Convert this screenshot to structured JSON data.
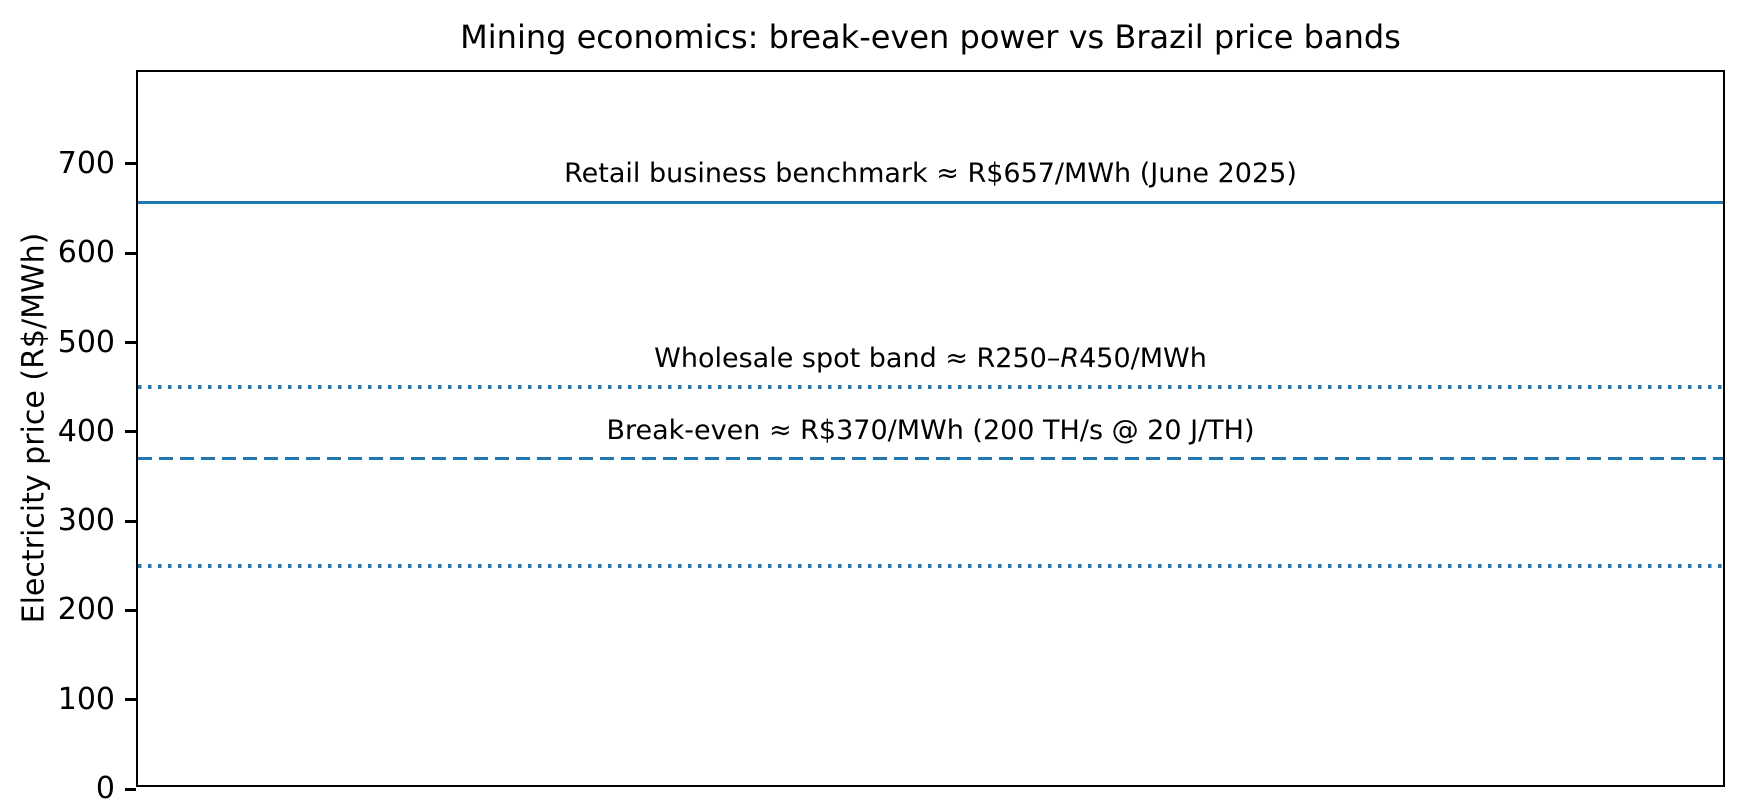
{
  "chart_data": {
    "type": "line",
    "subtype": "horizontal-reference-lines",
    "title": "Mining economics: break-even power vs Brazil price bands",
    "xlabel": "",
    "ylabel": "Electricity price (R$/MWh)",
    "ylim": [
      0,
      803
    ],
    "yticks": [
      0,
      100,
      200,
      300,
      400,
      500,
      600,
      700
    ],
    "xticks": [],
    "grid": false,
    "legend": "none",
    "accent_color": "#1f77b4",
    "lines": [
      {
        "name": "retail-benchmark-line",
        "value": 657,
        "style": "solid",
        "color": "#1f77b4",
        "label_parts": [
          {
            "text": "Retail business benchmark ≈ R$657/MWh (June 2025)",
            "italic": false
          }
        ]
      },
      {
        "name": "wholesale-band-upper-line",
        "value": 450,
        "style": "dotted",
        "color": "#1f77b4",
        "label_parts": [
          {
            "text": "Wholesale spot band ≈ R250–",
            "italic": false
          },
          {
            "text": "R",
            "italic": true
          },
          {
            "text": "450/MWh",
            "italic": false
          }
        ]
      },
      {
        "name": "break-even-line",
        "value": 370,
        "style": "dashed",
        "color": "#1f77b4",
        "label_parts": [
          {
            "text": "Break-even ≈ R$370/MWh (200 TH/s @ 20 J/TH)",
            "italic": false
          }
        ]
      },
      {
        "name": "wholesale-band-lower-line",
        "value": 250,
        "style": "dotted",
        "color": "#1f77b4",
        "label_parts": []
      }
    ]
  }
}
